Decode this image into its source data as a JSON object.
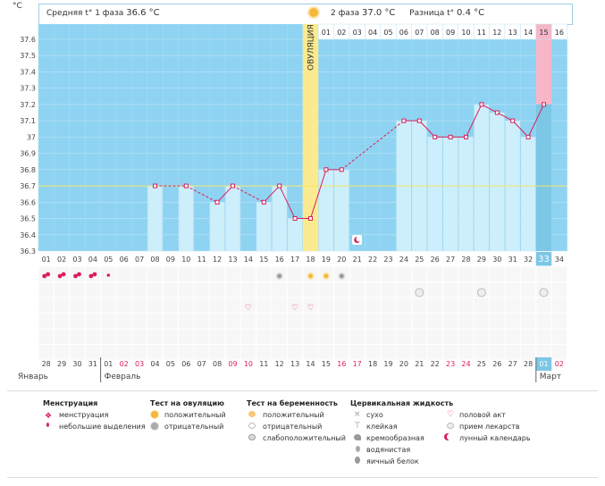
{
  "header": {
    "phase1_label": "Средняя t° 1 фаза",
    "phase1_value": "36.6 °C",
    "phase2_label": "2 фаза",
    "phase2_value": "37.0 °C",
    "diff_label": "Разница t°",
    "diff_value": "0.4 °C",
    "unit": "°C"
  },
  "ovulation_label": "ОВУЛЯЦИЯ",
  "chart_data": {
    "type": "line",
    "ylim": [
      36.3,
      37.6
    ],
    "yticks": [
      "37.6",
      "37.5",
      "37.4",
      "37.3",
      "37.2",
      "37.1",
      "37",
      "36.9",
      "36.8",
      "36.7",
      "36.6",
      "36.5",
      "36.4",
      "36.3"
    ],
    "cycle_days": [
      "01",
      "02",
      "03",
      "04",
      "05",
      "06",
      "07",
      "08",
      "09",
      "10",
      "11",
      "12",
      "13",
      "14",
      "15",
      "16",
      "17",
      "18",
      "19",
      "20",
      "21",
      "22",
      "23",
      "24",
      "25",
      "26",
      "27",
      "28",
      "29",
      "30",
      "31",
      "32",
      "33",
      "34"
    ],
    "current_day_index": 32,
    "post_ovulation_days": [
      "01",
      "02",
      "03",
      "04",
      "05",
      "06",
      "07",
      "08",
      "09",
      "10",
      "11",
      "12",
      "13",
      "14",
      "15",
      "16"
    ],
    "coverline": 36.7,
    "ovulation_day_index": 17,
    "temperatures": [
      null,
      null,
      null,
      null,
      null,
      null,
      null,
      36.7,
      null,
      36.7,
      null,
      36.6,
      36.7,
      null,
      36.6,
      36.7,
      36.5,
      36.5,
      36.8,
      36.8,
      null,
      null,
      null,
      37.1,
      37.1,
      37.0,
      37.0,
      37.0,
      37.2,
      37.15,
      37.1,
      37.0,
      37.2,
      null
    ],
    "calendar_dates": [
      "28",
      "29",
      "30",
      "31",
      "01",
      "02",
      "03",
      "04",
      "05",
      "06",
      "07",
      "08",
      "09",
      "10",
      "11",
      "12",
      "13",
      "14",
      "15",
      "16",
      "17",
      "18",
      "19",
      "20",
      "21",
      "22",
      "23",
      "24",
      "25",
      "26",
      "27",
      "28",
      "01",
      "02"
    ],
    "weekend_flags": [
      0,
      0,
      0,
      0,
      0,
      1,
      1,
      0,
      0,
      0,
      0,
      0,
      1,
      1,
      0,
      0,
      0,
      0,
      0,
      1,
      1,
      0,
      0,
      0,
      0,
      0,
      1,
      1,
      0,
      0,
      0,
      0,
      0,
      1
    ],
    "months": [
      {
        "name": "Январь",
        "start": 0
      },
      {
        "name": "Февраль",
        "start": 4
      },
      {
        "name": "Март",
        "start": 32
      }
    ],
    "menstruation": [
      "heavy",
      "heavy",
      "heavy",
      "heavy",
      "light",
      null,
      null,
      null,
      null,
      null,
      null,
      null,
      null,
      null,
      null,
      null,
      null,
      null,
      null,
      null,
      null,
      null,
      null,
      null,
      null,
      null,
      null,
      null,
      null,
      null,
      null,
      null,
      null,
      null
    ],
    "ovulation_tests": [
      null,
      null,
      null,
      null,
      null,
      null,
      null,
      null,
      null,
      null,
      null,
      null,
      null,
      null,
      null,
      "negative",
      null,
      "positive",
      "positive",
      "negative",
      null,
      null,
      null,
      null,
      null,
      null,
      null,
      null,
      null,
      null,
      null,
      null,
      null,
      null
    ],
    "medication": [
      null,
      null,
      null,
      null,
      null,
      null,
      null,
      null,
      null,
      null,
      null,
      null,
      null,
      null,
      null,
      null,
      null,
      null,
      null,
      null,
      null,
      null,
      null,
      null,
      "pill",
      null,
      null,
      null,
      "pill",
      null,
      null,
      null,
      "pill",
      null
    ],
    "intercourse": [
      null,
      null,
      null,
      null,
      null,
      null,
      null,
      null,
      null,
      null,
      null,
      null,
      null,
      "heart",
      null,
      null,
      "heart",
      "heart",
      null,
      null,
      null,
      null,
      null,
      null,
      null,
      null,
      null,
      null,
      null,
      null,
      null,
      null,
      null,
      null
    ],
    "lunar_day_index": 20
  },
  "legend": {
    "menstruation": {
      "title": "Менструация",
      "items": [
        "менструация",
        "небольшие выделения"
      ]
    },
    "ovulation_test": {
      "title": "Тест на овуляцию",
      "items": [
        "положительный",
        "отрицательный"
      ]
    },
    "pregnancy_test": {
      "title": "Тест на беременность",
      "items": [
        "положительный",
        "отрицательный",
        "слабоположительный"
      ]
    },
    "cervical": {
      "title": "Цервикальная жидкость",
      "items": [
        "сухо",
        "клейкая",
        "кремообразная",
        "водянистая",
        "яичный белок"
      ]
    },
    "other": {
      "items": [
        "половой акт",
        "прием лекарств",
        "лунный календарь"
      ]
    }
  },
  "colors": {
    "plot_bg": "#8fd3f2",
    "bar": "#cdeefb",
    "line": "#d81f5a",
    "ovulation": "#fbea8f",
    "coverline": "#f3e76a",
    "current": "#7cc6e6",
    "pink": "#f7b6c8"
  }
}
